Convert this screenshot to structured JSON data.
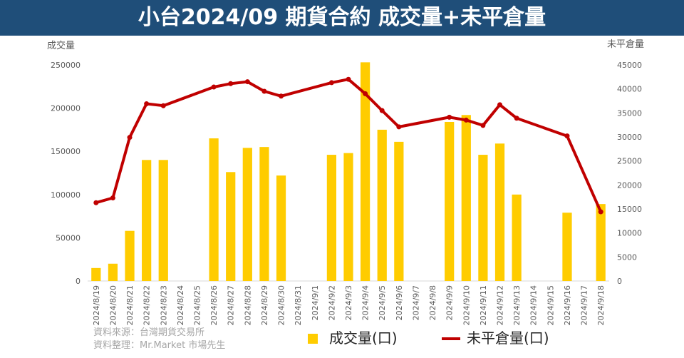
{
  "title": "小台2024/09 期貨合約 成交量+未平倉量",
  "source_lines": [
    "資料來源：台灣期貨交易所",
    "資料整理：Mr.Market 市場先生"
  ],
  "colors": {
    "banner": "#1f4e79",
    "bar": "#ffcc00",
    "line": "#c00000",
    "axis_text": "#595959",
    "grid": "#d9d9d9"
  },
  "chart_data": {
    "type": "bar+line",
    "categories": [
      "2024/8/19",
      "2024/8/20",
      "2024/8/21",
      "2024/8/22",
      "2024/8/23",
      "2024/8/24",
      "2024/8/25",
      "2024/8/26",
      "2024/8/27",
      "2024/8/28",
      "2024/8/29",
      "2024/8/30",
      "2024/8/31",
      "2024/9/1",
      "2024/9/2",
      "2024/9/3",
      "2024/9/4",
      "2024/9/5",
      "2024/9/6",
      "2024/9/7",
      "2024/9/8",
      "2024/9/9",
      "2024/9/10",
      "2024/9/11",
      "2024/9/12",
      "2024/9/13",
      "2024/9/14",
      "2024/9/15",
      "2024/9/16",
      "2024/9/17",
      "2024/9/18"
    ],
    "left_axis": {
      "label": "成交量",
      "min": 0,
      "max": 250000,
      "ticks": [
        0,
        50000,
        100000,
        150000,
        200000,
        250000
      ]
    },
    "right_axis": {
      "label": "未平倉量",
      "min": 0,
      "max": 45000,
      "ticks": [
        0,
        5000,
        10000,
        15000,
        20000,
        25000,
        30000,
        35000,
        40000,
        45000
      ]
    },
    "series": [
      {
        "name": "成交量(口)",
        "type": "bar",
        "axis": "left",
        "values": [
          15000,
          20000,
          58000,
          140000,
          140000,
          null,
          null,
          165000,
          126000,
          154000,
          155000,
          122000,
          null,
          null,
          146000,
          148000,
          253000,
          175000,
          161000,
          null,
          null,
          184000,
          192000,
          146000,
          159000,
          100000,
          null,
          null,
          79000,
          null,
          89000
        ]
      },
      {
        "name": "未平倉量(口)",
        "type": "line",
        "axis": "right",
        "values": [
          16300,
          17300,
          29900,
          36900,
          36500,
          null,
          null,
          40400,
          41100,
          41500,
          39500,
          38500,
          null,
          null,
          41300,
          42000,
          39000,
          35500,
          32100,
          null,
          null,
          34100,
          33500,
          32400,
          36700,
          33900,
          null,
          null,
          30200,
          null,
          14400
        ]
      }
    ],
    "legend_position": "bottom"
  }
}
